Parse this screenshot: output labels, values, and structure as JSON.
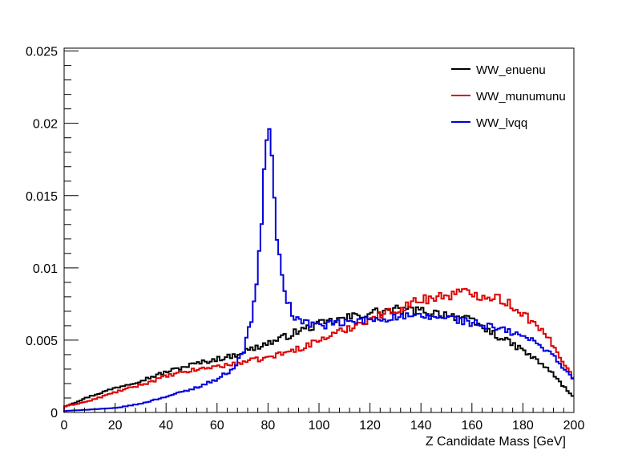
{
  "chart_data": {
    "type": "line",
    "style": "step-histogram",
    "title": "",
    "xlabel": "Z Candidate Mass [GeV]",
    "ylabel": "",
    "xlim": [
      0,
      200
    ],
    "ylim": [
      0,
      0.0252
    ],
    "grid": false,
    "legend_position": "top-right",
    "x_ticks": [
      0,
      20,
      40,
      60,
      80,
      100,
      120,
      140,
      160,
      180,
      200
    ],
    "x_tick_labels": [
      "0",
      "20",
      "40",
      "60",
      "80",
      "100",
      "120",
      "140",
      "160",
      "180",
      "200"
    ],
    "y_ticks": [
      0,
      0.005,
      0.01,
      0.015,
      0.02,
      0.025
    ],
    "y_tick_labels": [
      "0",
      "0.005",
      "0.01",
      "0.015",
      "0.02",
      "0.025"
    ],
    "x": [
      0,
      10,
      20,
      30,
      40,
      50,
      60,
      66,
      70,
      74,
      77,
      78,
      80,
      82,
      84,
      86,
      88,
      90,
      95,
      100,
      110,
      120,
      130,
      140,
      150,
      155,
      160,
      165,
      170,
      180,
      190,
      195,
      200
    ],
    "series": [
      {
        "name": "WW_enuenu",
        "color": "#000000",
        "values": [
          0.0004,
          0.0011,
          0.0017,
          0.0022,
          0.0028,
          0.0033,
          0.0037,
          0.0039,
          0.0042,
          0.0044,
          0.0046,
          0.0047,
          0.0048,
          0.0049,
          0.005,
          0.0052,
          0.0053,
          0.0055,
          0.0058,
          0.0061,
          0.0065,
          0.0069,
          0.0071,
          0.007,
          0.0068,
          0.0066,
          0.0063,
          0.0058,
          0.0053,
          0.0043,
          0.003,
          0.002,
          0.001
        ]
      },
      {
        "name": "WW_munumunu",
        "color": "#dd0000",
        "values": [
          0.0004,
          0.0008,
          0.0014,
          0.0019,
          0.0025,
          0.0029,
          0.0032,
          0.0033,
          0.0035,
          0.0036,
          0.0037,
          0.0037,
          0.0038,
          0.0039,
          0.004,
          0.0041,
          0.0042,
          0.0043,
          0.0046,
          0.005,
          0.0057,
          0.0065,
          0.0071,
          0.0078,
          0.0081,
          0.0083,
          0.0082,
          0.0081,
          0.008,
          0.0069,
          0.0051,
          0.0038,
          0.0023
        ]
      },
      {
        "name": "WW_lvqq",
        "color": "#0000dd",
        "values": [
          0.0001,
          0.0002,
          0.0003,
          0.0006,
          0.0011,
          0.0016,
          0.0023,
          0.003,
          0.004,
          0.0068,
          0.0115,
          0.015,
          0.0209,
          0.016,
          0.011,
          0.009,
          0.0075,
          0.0066,
          0.0062,
          0.006,
          0.0062,
          0.0064,
          0.0066,
          0.0066,
          0.0066,
          0.0064,
          0.0062,
          0.006,
          0.0058,
          0.0053,
          0.0043,
          0.0033,
          0.0022
        ]
      }
    ]
  }
}
